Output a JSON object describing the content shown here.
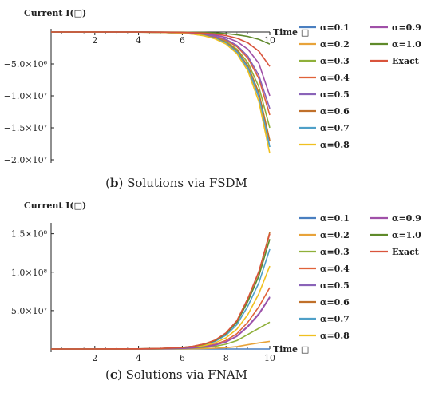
{
  "chart_data": [
    {
      "type": "line",
      "panel": "b",
      "caption_label": "b",
      "caption_text": "Solutions via FSDM",
      "ylabel": "Current I(□)",
      "xlabel": "Time □",
      "xlim": [
        0,
        10
      ],
      "ylim": [
        -20000000,
        0
      ],
      "xticks": [
        2,
        4,
        6,
        8,
        10
      ],
      "xtick_labels": [
        "2",
        "4",
        "6",
        "8",
        "10"
      ],
      "yticks": [
        -5000000,
        -10000000,
        -15000000,
        -20000000
      ],
      "ytick_labels": [
        "−5.0×10⁶",
        "−1.0×10⁷",
        "−1.5×10⁷",
        "−2.0×10⁷"
      ],
      "x": [
        0,
        2,
        4,
        5,
        6,
        6.5,
        7,
        7.5,
        8,
        8.5,
        9,
        9.5,
        10
      ],
      "series": [
        {
          "name": "α=0.1",
          "color": "#4a7fc0",
          "values": [
            0,
            0,
            -20000,
            -60000,
            -180000,
            -320000,
            -560000,
            -1000000,
            -1800000,
            -3200000,
            -5700000,
            -10200000,
            -18000000
          ]
        },
        {
          "name": "α=0.2",
          "color": "#e8a33a",
          "values": [
            0,
            0,
            -20000,
            -60000,
            -170000,
            -300000,
            -530000,
            -950000,
            -1700000,
            -3000000,
            -5400000,
            -9700000,
            -17000000
          ]
        },
        {
          "name": "α=0.3",
          "color": "#8fb03a",
          "values": [
            0,
            0,
            -15000,
            -50000,
            -150000,
            -270000,
            -480000,
            -850000,
            -1500000,
            -2700000,
            -4800000,
            -8600000,
            -15000000
          ]
        },
        {
          "name": "α=0.4",
          "color": "#e0623a",
          "values": [
            0,
            0,
            -12000,
            -45000,
            -130000,
            -230000,
            -400000,
            -720000,
            -1300000,
            -2300000,
            -4100000,
            -7300000,
            -13000000
          ]
        },
        {
          "name": "α=0.5",
          "color": "#8a63b8",
          "values": [
            0,
            0,
            -10000,
            -40000,
            -110000,
            -200000,
            -350000,
            -640000,
            -1150000,
            -2100000,
            -3800000,
            -6800000,
            -12000000
          ]
        },
        {
          "name": "α=0.6",
          "color": "#c0702a",
          "values": [
            0,
            0,
            -15000,
            -55000,
            -160000,
            -290000,
            -510000,
            -920000,
            -1650000,
            -2900000,
            -5300000,
            -9500000,
            -17000000
          ]
        },
        {
          "name": "α=0.7",
          "color": "#4fa0c8",
          "values": [
            0,
            0,
            -18000,
            -60000,
            -175000,
            -310000,
            -550000,
            -990000,
            -1750000,
            -3100000,
            -5600000,
            -10100000,
            -18000000
          ]
        },
        {
          "name": "α=0.8",
          "color": "#f0c020",
          "values": [
            0,
            0,
            -20000,
            -65000,
            -190000,
            -340000,
            -600000,
            -1080000,
            -1900000,
            -3400000,
            -6100000,
            -10900000,
            -19000000
          ]
        },
        {
          "name": "α=0.9",
          "color": "#a050a8",
          "values": [
            0,
            0,
            -8000,
            -30000,
            -80000,
            -145000,
            -260000,
            -470000,
            -850000,
            -1500000,
            -2700000,
            -4900000,
            -10000000
          ]
        },
        {
          "name": "α=1.0",
          "color": "#5f8a2a",
          "values": [
            0,
            0,
            -3000,
            -10000,
            -25000,
            -45000,
            -80000,
            -140000,
            -250000,
            -420000,
            -700000,
            -1150000,
            -1900000
          ]
        },
        {
          "name": "Exact",
          "color": "#d9543c",
          "values": [
            0,
            0,
            -6000,
            -20000,
            -55000,
            -100000,
            -180000,
            -320000,
            -560000,
            -980000,
            -1700000,
            -3000000,
            -5400000
          ]
        }
      ]
    },
    {
      "type": "line",
      "panel": "c",
      "caption_label": "c",
      "caption_text": "Solutions via FNAM",
      "ylabel": "Current I(□)",
      "xlabel": "Time □",
      "xlim": [
        0,
        10
      ],
      "ylim": [
        0,
        160000000
      ],
      "xticks": [
        2,
        4,
        6,
        8,
        10
      ],
      "xtick_labels": [
        "2",
        "4",
        "6",
        "8",
        "10"
      ],
      "yticks": [
        50000000,
        100000000,
        150000000
      ],
      "ytick_labels": [
        "5.0×10⁷",
        "1.0×10⁸",
        "1.5×10⁸"
      ],
      "x": [
        0,
        2,
        4,
        5,
        6,
        6.5,
        7,
        7.5,
        8,
        8.5,
        9,
        9.5,
        10
      ],
      "series": [
        {
          "name": "α=0.1",
          "color": "#4a7fc0",
          "values": [
            0,
            0,
            0,
            0,
            0,
            0,
            0,
            0,
            0,
            0,
            0,
            0,
            0
          ]
        },
        {
          "name": "α=0.2",
          "color": "#e8a33a",
          "values": [
            0,
            0,
            20000,
            60000,
            180000,
            320000,
            560000,
            1000000,
            1800000,
            3200000,
            5600000,
            8000000,
            10000000
          ]
        },
        {
          "name": "α=0.3",
          "color": "#8fb03a",
          "values": [
            0,
            0,
            60000,
            200000,
            600000,
            1100000,
            1900000,
            3500000,
            6300000,
            11000000,
            19000000,
            27000000,
            35000000
          ]
        },
        {
          "name": "α=0.4",
          "color": "#e0623a",
          "values": [
            0,
            0,
            100000,
            350000,
            1050000,
            1900000,
            3400000,
            6200000,
            11200000,
            20000000,
            35000000,
            55000000,
            80000000
          ]
        },
        {
          "name": "α=0.5",
          "color": "#8a63b8",
          "values": [
            0,
            0,
            90000,
            300000,
            900000,
            1600000,
            2900000,
            5300000,
            9500000,
            17000000,
            30000000,
            46000000,
            68000000
          ]
        },
        {
          "name": "α=0.6",
          "color": "#c0702a",
          "values": [
            0,
            0,
            200000,
            700000,
            2000000,
            3600000,
            6500000,
            11500000,
            21000000,
            37000000,
            66000000,
            100000000,
            152000000
          ]
        },
        {
          "name": "α=0.7",
          "color": "#4fa0c8",
          "values": [
            0,
            0,
            180000,
            600000,
            1750000,
            3100000,
            5600000,
            10000000,
            18000000,
            32000000,
            56000000,
            86000000,
            130000000
          ]
        },
        {
          "name": "α=0.8",
          "color": "#f0c020",
          "values": [
            0,
            0,
            140000,
            480000,
            1400000,
            2500000,
            4500000,
            8000000,
            14500000,
            26000000,
            45000000,
            72000000,
            108000000
          ]
        },
        {
          "name": "α=0.9",
          "color": "#a050a8",
          "values": [
            0,
            0,
            90000,
            300000,
            880000,
            1600000,
            2800000,
            5100000,
            9200000,
            16500000,
            29000000,
            45000000,
            67000000
          ]
        },
        {
          "name": "α=1.0",
          "color": "#5f8a2a",
          "values": [
            0,
            0,
            190000,
            650000,
            1900000,
            3400000,
            6100000,
            11000000,
            20000000,
            35000000,
            62000000,
            95000000,
            143000000
          ]
        },
        {
          "name": "Exact",
          "color": "#d9543c",
          "values": [
            0,
            0,
            200000,
            700000,
            2000000,
            3600000,
            6500000,
            11500000,
            21000000,
            37000000,
            66000000,
            101000000,
            150000000
          ]
        }
      ]
    }
  ]
}
